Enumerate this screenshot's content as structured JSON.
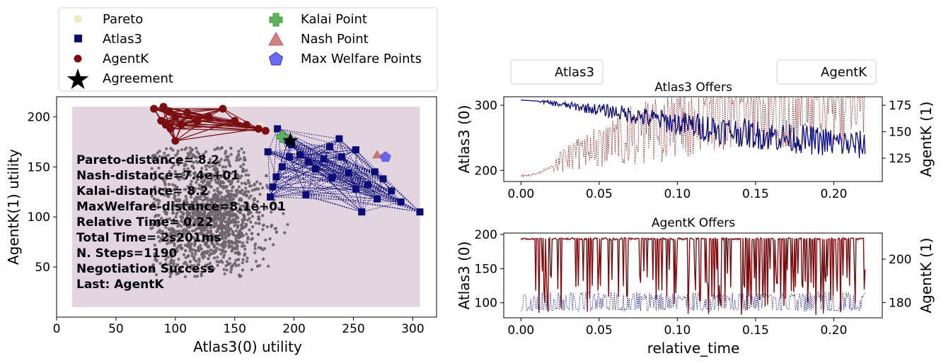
{
  "colors": {
    "pareto": "#eee8c4",
    "atlas3": "#0b0b78",
    "agentk": "#7a0d10",
    "agreement": "#000000",
    "kalai": "#3a9a3a",
    "nash": "#c0585a",
    "max_welfare": "#3b3bf0",
    "outcomes": "#6b6468",
    "area_fill": "#e2d5e0"
  },
  "legend_main": {
    "items": [
      {
        "label": "Pareto",
        "marker": "circle"
      },
      {
        "label": "Atlas3",
        "marker": "square"
      },
      {
        "label": "AgentK",
        "marker": "circle"
      },
      {
        "label": "Agreement",
        "marker": "star"
      },
      {
        "label": "Kalai Point",
        "marker": "plus"
      },
      {
        "label": "Nash Point",
        "marker": "triangle"
      },
      {
        "label": "Max Welfare Points",
        "marker": "pentagon"
      }
    ]
  },
  "legend_offers": {
    "left": "Atlas3",
    "right": "AgentK"
  },
  "stats": [
    "Pareto-distance=  8.2",
    "Nash-distance=7.4e+01",
    "Kalai-distance=  8.2",
    "MaxWelfare-distance=8.1e+01",
    "Relative Time= 0.22",
    "Total Time= 2s201ms",
    "N. Steps=1190",
    "Negotiation Success",
    "Last: AgentK"
  ],
  "chart_data": [
    {
      "type": "scatter",
      "id": "utility_space",
      "xlabel": "Atlas3(0) utility",
      "ylabel": "AgentK(1) utility",
      "xlim": [
        0,
        320
      ],
      "ylim": [
        0,
        220
      ],
      "xticks": [
        0,
        50,
        100,
        150,
        200,
        250,
        300
      ],
      "yticks": [
        50,
        100,
        150,
        200
      ],
      "series": [
        {
          "name": "Atlas3",
          "points": [
            [
              306,
              105
            ],
            [
              290,
              115
            ],
            [
              282,
              126
            ],
            [
              275,
              138
            ],
            [
              268,
              145
            ],
            [
              262,
              132
            ],
            [
              252,
              128
            ],
            [
              246,
              144
            ],
            [
              240,
              160
            ],
            [
              238,
              178
            ],
            [
              230,
              170
            ],
            [
              225,
              158
            ],
            [
              218,
              148
            ],
            [
              212,
              155
            ],
            [
              205,
              162
            ],
            [
              198,
              172
            ],
            [
              196,
              160
            ],
            [
              190,
              150
            ],
            [
              185,
              140
            ],
            [
              182,
              130
            ],
            [
              180,
              120
            ],
            [
              178,
              165
            ],
            [
              186,
              188
            ],
            [
              195,
              176
            ],
            [
              232,
              139
            ],
            [
              252,
              167
            ],
            [
              257,
              105
            ],
            [
              210,
              122
            ],
            [
              270,
              118
            ]
          ]
        },
        {
          "name": "AgentK",
          "points": [
            [
              82,
              208
            ],
            [
              90,
              210
            ],
            [
              95,
              205
            ],
            [
              88,
              196
            ],
            [
              92,
              192
            ],
            [
              100,
              200
            ],
            [
              110,
              204
            ],
            [
              118,
              196
            ],
            [
              128,
              200
            ],
            [
              140,
              208
            ],
            [
              150,
              196
            ],
            [
              160,
              192
            ],
            [
              170,
              188
            ],
            [
              176,
              186
            ],
            [
              96,
              188
            ],
            [
              100,
              176
            ],
            [
              105,
              192
            ]
          ]
        }
      ],
      "agreement": [
        197,
        176
      ],
      "kalai": [
        190,
        180
      ],
      "nash": [
        270,
        162
      ],
      "max_welfare": [
        277,
        160
      ],
      "pareto": [
        [
          172,
          192
        ],
        [
          190,
          180
        ],
        [
          270,
          162
        ],
        [
          277,
          160
        ]
      ],
      "outcome_bounds": {
        "x": [
          13,
          306
        ],
        "y": [
          10,
          210
        ]
      }
    },
    {
      "type": "line",
      "id": "atlas3_offers",
      "title": "Atlas3 Offers",
      "xlabel": "",
      "ylabel": "Atlas3 (0)",
      "ylabel_right": "AgentK (1)",
      "xlim": [
        -0.011,
        0.231
      ],
      "ylim": [
        183,
        313
      ],
      "ylim_right": [
        103,
        183
      ],
      "xticks": [
        0.0,
        0.05,
        0.1,
        0.15,
        0.2
      ],
      "xticklabels": [
        "0.00",
        "0.05",
        "0.10",
        "0.15",
        "0.20"
      ],
      "yticks": [
        200,
        300
      ],
      "yticks_right": [
        125,
        150,
        175
      ],
      "series": [
        {
          "name": "Atlas3",
          "axis": "left",
          "x_range": [
            0.0,
            0.22
          ],
          "trend": [
            [
              0.0,
              308
            ],
            [
              0.012,
              306
            ],
            [
              0.028,
              300
            ],
            [
              0.06,
              290
            ],
            [
              0.1,
              272
            ],
            [
              0.15,
              255
            ],
            [
              0.22,
              238
            ]
          ],
          "noise": 45
        },
        {
          "name": "AgentK",
          "axis": "right",
          "x_range": [
            0.0,
            0.22
          ],
          "trend": [
            [
              0.0,
              108
            ],
            [
              0.01,
              110
            ],
            [
              0.03,
              125
            ],
            [
              0.07,
              145
            ],
            [
              0.12,
              160
            ],
            [
              0.18,
              165
            ],
            [
              0.22,
              170
            ]
          ],
          "noise": 60
        }
      ]
    },
    {
      "type": "line",
      "id": "agentk_offers",
      "title": "AgentK Offers",
      "xlabel": "relative_time",
      "ylabel": "Atlas3 (0)",
      "ylabel_right": "AgentK (1)",
      "xlim": [
        -0.011,
        0.231
      ],
      "ylim": [
        78,
        202
      ],
      "ylim_right": [
        173,
        212
      ],
      "xticks": [
        0.0,
        0.05,
        0.1,
        0.15,
        0.2
      ],
      "xticklabels": [
        "0.00",
        "0.05",
        "0.10",
        "0.15",
        "0.20"
      ],
      "yticks": [
        100,
        150,
        200
      ],
      "yticks_right": [
        180,
        200
      ],
      "series": [
        {
          "name": "AgentK",
          "axis": "left",
          "x_range": [
            0.0,
            0.22
          ],
          "high": 195,
          "low": 82
        },
        {
          "name": "Atlas3",
          "axis": "right",
          "x_range": [
            0.0,
            0.22
          ],
          "high": 185,
          "low": 176
        }
      ]
    }
  ]
}
